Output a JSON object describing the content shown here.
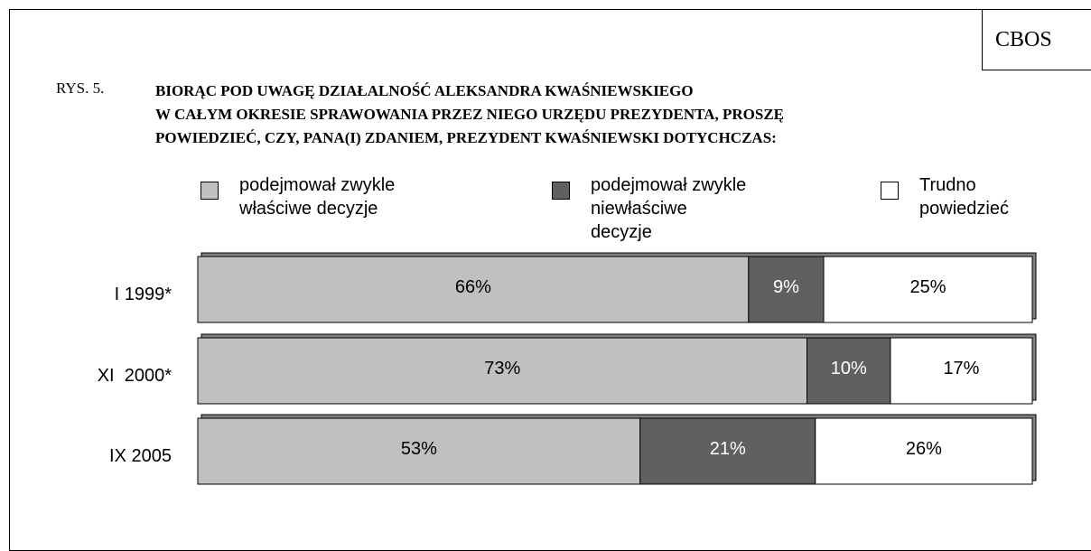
{
  "chart_data": {
    "type": "stacked_barh",
    "source": "CBOS",
    "figure_label": "RYS. 5.",
    "title": "BIORĄC POD UWAGĘ DZIAŁALNOŚĆ ALEKSANDRA KWAŚNIEWSKIEGO\nW CAŁYM OKRESIE SPRAWOWANIA PRZEZ NIEGO URZĘDU PREZYDENTA, PROSZĘ\nPOWIEDZIEĆ, CZY, PANA(I) ZDANIEM, PREZYDENT KWAŚNIEWSKI DOTYCHCZAS:",
    "categories": [
      "I 1999*",
      "XI  2000*",
      "IX 2005"
    ],
    "xlim": [
      0,
      100
    ],
    "series": [
      {
        "name": "podejmował zwykle właściwe decyzje",
        "color": "#c0c0c0",
        "text_color": "#000000",
        "values": [
          66,
          73,
          53
        ],
        "value_labels": [
          "66%",
          "73%",
          "53%"
        ]
      },
      {
        "name": "podejmował zwykle niewłaściwe decyzje",
        "color": "#606060",
        "text_color": "#ffffff",
        "values": [
          9,
          10,
          21
        ],
        "value_labels": [
          "9%",
          "10%",
          "21%"
        ]
      },
      {
        "name": "Trudno powiedzieć",
        "color": "#ffffff",
        "text_color": "#000000",
        "values": [
          25,
          17,
          26
        ],
        "value_labels": [
          "25%",
          "17%",
          "26%"
        ]
      }
    ]
  }
}
